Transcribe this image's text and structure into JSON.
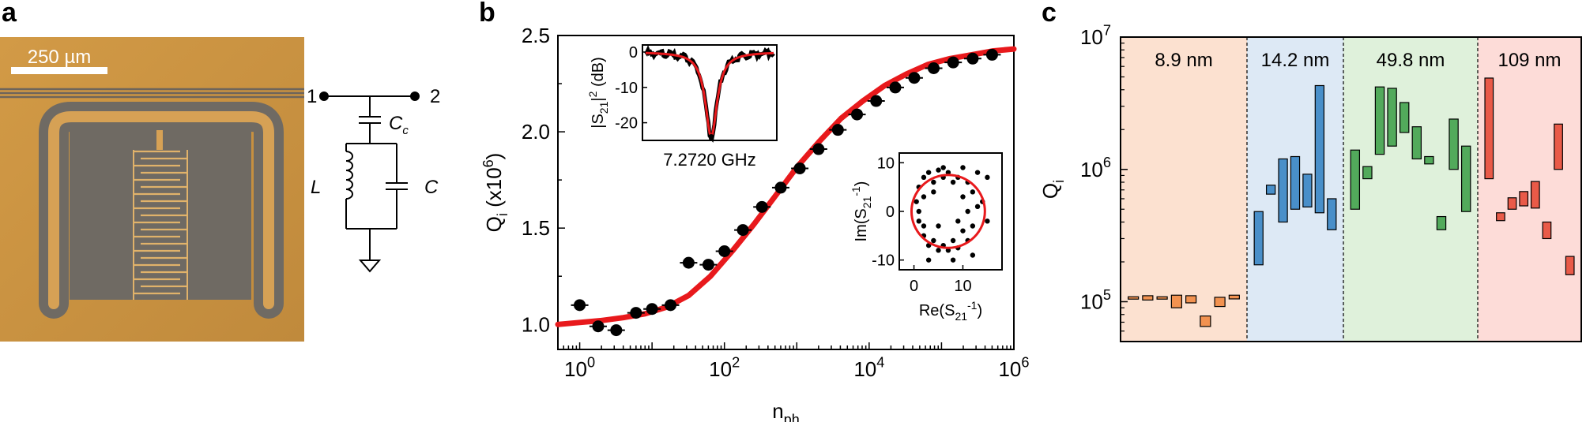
{
  "panels": {
    "a": {
      "label": "a",
      "scale_bar": "250 µm",
      "node1": "1",
      "node2": "2",
      "cap_c_label": "C",
      "cap_c_sub": "c",
      "inductor_label": "L",
      "cap_label": "C",
      "colors": {
        "substrate": "#c9923f",
        "film": "#6f6a63",
        "trace": "#e0b26a"
      }
    },
    "b": {
      "label": "b"
    },
    "c": {
      "label": "c"
    }
  },
  "chart_data": [
    {
      "id": "qi-vs-nph",
      "type": "scatter",
      "xlabel": "n",
      "xlabel_sub": "ph",
      "ylabel": "Q",
      "ylabel_sub": "i",
      "ylabel_suffix": " (x10",
      "ylabel_exp": "6",
      "ylabel_close": ")",
      "xscale": "log",
      "xlim": [
        0.5,
        1000000
      ],
      "ylim": [
        0.87,
        2.5
      ],
      "x_ticks": [
        {
          "base": "10",
          "exp": "0",
          "value": 1
        },
        {
          "base": "10",
          "exp": "2",
          "value": 100
        },
        {
          "base": "10",
          "exp": "4",
          "value": 10000
        },
        {
          "base": "10",
          "exp": "6",
          "value": 1000000
        }
      ],
      "y_ticks": [
        {
          "label": "1.0",
          "value": 1.0
        },
        {
          "label": "1.5",
          "value": 1.5
        },
        {
          "label": "2.0",
          "value": 2.0
        },
        {
          "label": "2.5",
          "value": 2.5
        }
      ],
      "series": [
        {
          "kind": "data",
          "color": "#000000",
          "x": [
            1.0,
            1.8,
            3.2,
            6.0,
            10.0,
            18.0,
            32.0,
            60.0,
            100.0,
            180.0,
            330.0,
            600.0,
            1100.0,
            2000.0,
            3700.0,
            6800.0,
            12500.0,
            23000.0,
            42000.0,
            78000.0,
            145000.0,
            270000.0,
            500000.0
          ],
          "y": [
            1.1,
            0.99,
            0.97,
            1.06,
            1.08,
            1.1,
            1.32,
            1.31,
            1.38,
            1.49,
            1.61,
            1.71,
            1.81,
            1.91,
            2.01,
            2.09,
            2.16,
            2.23,
            2.28,
            2.33,
            2.36,
            2.38,
            2.4
          ]
        },
        {
          "kind": "fit",
          "color": "#e8191c",
          "x": [
            0.5,
            1,
            2,
            4,
            8,
            16,
            32,
            64,
            128,
            256,
            512,
            1024,
            2048,
            4096,
            8192,
            16384,
            32768,
            65536,
            131072,
            262144,
            524288,
            1000000
          ],
          "y": [
            1.0,
            1.01,
            1.02,
            1.035,
            1.055,
            1.09,
            1.15,
            1.25,
            1.38,
            1.52,
            1.67,
            1.82,
            1.95,
            2.07,
            2.16,
            2.24,
            2.3,
            2.35,
            2.38,
            2.4,
            2.42,
            2.43
          ]
        }
      ]
    },
    {
      "id": "inset-s21-magnitude",
      "type": "line",
      "ylabel": "|S",
      "ylabel_sub": "21",
      "ylabel_rest": "|",
      "ylabel_sup": "2",
      "ylabel_unit": " (dB)",
      "xlabel": "7.2720 GHz",
      "ylim": [
        -25,
        2
      ],
      "y_ticks": [
        {
          "label": "0",
          "value": 0
        },
        {
          "label": "-10",
          "value": -10
        },
        {
          "label": "-20",
          "value": -20
        }
      ],
      "dip_depth_db": -24,
      "series_colors": {
        "data": "#000000",
        "fit": "#e8191c"
      }
    },
    {
      "id": "inset-circle",
      "type": "scatter",
      "xlabel": "Re(S",
      "xlabel_sub": "21",
      "xlabel_sup": "-1",
      "xlabel_close": ")",
      "ylabel": "Im(S",
      "ylabel_sub": "21",
      "ylabel_sup": "-1",
      "ylabel_close": ")",
      "xlim": [
        -3,
        18
      ],
      "ylim": [
        -12,
        12
      ],
      "x_ticks": [
        {
          "label": "0",
          "value": 0
        },
        {
          "label": "10",
          "value": 10
        }
      ],
      "y_ticks": [
        {
          "label": "10",
          "value": 10
        },
        {
          "label": "0",
          "value": 0
        },
        {
          "label": "-10",
          "value": -10
        }
      ],
      "circle": {
        "cx": 7,
        "cy": 0,
        "r": 7.5,
        "color": "#e8191c"
      },
      "points": [
        [
          0.5,
          2
        ],
        [
          1,
          5
        ],
        [
          2,
          7
        ],
        [
          3,
          8
        ],
        [
          5,
          8.5
        ],
        [
          7,
          8
        ],
        [
          9,
          7
        ],
        [
          11,
          6
        ],
        [
          12,
          4
        ],
        [
          13,
          1
        ],
        [
          12,
          -3
        ],
        [
          11,
          -6
        ],
        [
          9,
          -7.5
        ],
        [
          7,
          -8
        ],
        [
          5,
          -8
        ],
        [
          3,
          -7
        ],
        [
          2,
          -5
        ],
        [
          1,
          -2
        ],
        [
          1,
          0
        ],
        [
          2,
          3
        ],
        [
          4,
          6
        ],
        [
          6,
          7
        ],
        [
          8,
          6
        ],
        [
          10,
          3
        ],
        [
          11,
          0
        ],
        [
          10,
          -4
        ],
        [
          8,
          -6
        ],
        [
          6,
          -7
        ],
        [
          4,
          -6
        ],
        [
          2,
          -3
        ],
        [
          14,
          2
        ],
        [
          15,
          -2
        ],
        [
          13,
          8
        ],
        [
          3,
          -10
        ],
        [
          8,
          -10
        ],
        [
          12,
          -9
        ],
        [
          6,
          9
        ],
        [
          10,
          9
        ],
        [
          15,
          7
        ],
        [
          4,
          4
        ],
        [
          9,
          -2
        ],
        [
          5,
          -3
        ]
      ]
    },
    {
      "id": "qi-by-thickness",
      "type": "bar",
      "ylabel": "Q",
      "ylabel_sub": "i",
      "yscale": "log",
      "ylim": [
        50000,
        10000000
      ],
      "y_ticks": [
        {
          "base": "10",
          "exp": "5",
          "value": 100000
        },
        {
          "base": "10",
          "exp": "6",
          "value": 1000000
        },
        {
          "base": "10",
          "exp": "7",
          "value": 10000000
        }
      ],
      "groups": [
        {
          "name": "8.9 nm",
          "background": "#fce1d0",
          "bar_color": "#f0843a",
          "bars": [
            [
              107000,
              109000
            ],
            [
              103000,
              111000
            ],
            [
              106000,
              109000
            ],
            [
              90000,
              112000
            ],
            [
              98000,
              111000
            ],
            [
              65000,
              78000
            ],
            [
              92000,
              108000
            ],
            [
              105000,
              112000
            ]
          ]
        },
        {
          "name": "14.2 nm",
          "background": "#dde9f5",
          "bar_color": "#2f7fc1",
          "bars": [
            [
              190000,
              480000
            ],
            [
              650000,
              760000
            ],
            [
              400000,
              1200000
            ],
            [
              500000,
              1250000
            ],
            [
              520000,
              920000
            ],
            [
              470000,
              4300000
            ],
            [
              350000,
              600000
            ]
          ]
        },
        {
          "name": "49.8 nm",
          "background": "#dff1db",
          "bar_color": "#3a9d44",
          "bars": [
            [
              500000,
              1400000
            ],
            [
              850000,
              1050000
            ],
            [
              1300000,
              4200000
            ],
            [
              1500000,
              4100000
            ],
            [
              1900000,
              3200000
            ],
            [
              1200000,
              2100000
            ],
            [
              1100000,
              1250000
            ],
            [
              350000,
              440000
            ],
            [
              1000000,
              2400000
            ],
            [
              480000,
              1500000
            ]
          ]
        },
        {
          "name": "109 nm",
          "background": "#fddcd8",
          "bar_color": "#e5432f",
          "bars": [
            [
              850000,
              4900000
            ],
            [
              410000,
              470000
            ],
            [
              500000,
              610000
            ],
            [
              530000,
              680000
            ],
            [
              510000,
              810000
            ],
            [
              300000,
              400000
            ],
            [
              1000000,
              2200000
            ],
            [
              160000,
              220000
            ]
          ]
        }
      ]
    }
  ]
}
